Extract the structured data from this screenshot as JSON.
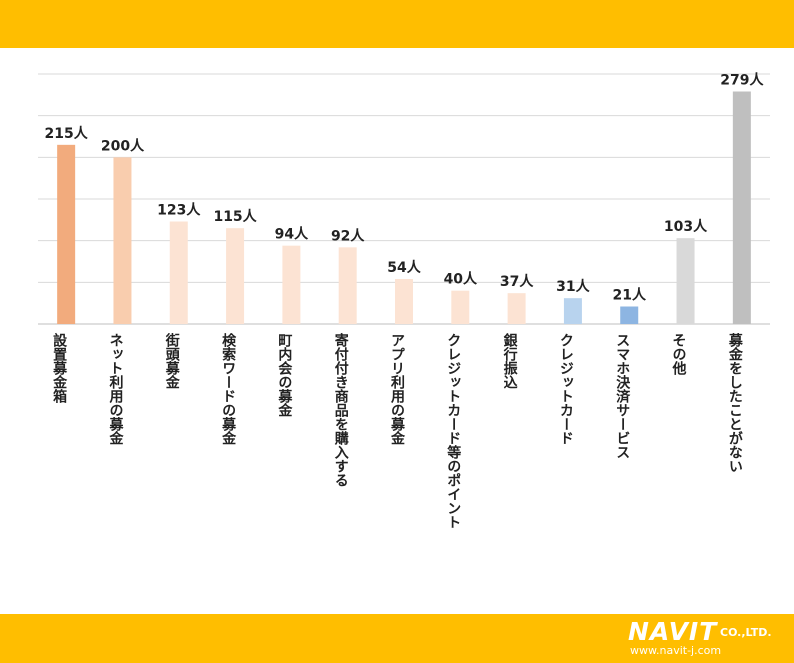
{
  "chart_data": {
    "type": "bar",
    "title": "",
    "xlabel": "",
    "ylabel": "",
    "ylim": [
      0,
      300
    ],
    "grid": true,
    "categories": [
      "設置募金箱",
      "ネット利用の募金",
      "街頭募金",
      "検索ワードの募金",
      "町内会の募金",
      "寄付付き商品を購入する",
      "アプリ利用の募金",
      "クレジットカード等のポイント",
      "銀行振込",
      "クレジットカード",
      "スマホ決済サービス",
      "その他",
      "募金をしたことがない"
    ],
    "values": [
      215,
      200,
      123,
      115,
      94,
      92,
      54,
      40,
      37,
      31,
      21,
      103,
      279
    ],
    "data_labels": [
      "215人",
      "200人",
      "123人",
      "115人",
      "94人",
      "92人",
      "54人",
      "40人",
      "37人",
      "31人",
      "21人",
      "103人",
      "279人"
    ],
    "colors": [
      "#F2AB7D",
      "#F9CDAE",
      "#FCE3D3",
      "#FCE3D3",
      "#FCE3D3",
      "#FCE3D3",
      "#FCE3D3",
      "#FCE3D3",
      "#FCE3D3",
      "#B8D3EE",
      "#8DB5E2",
      "#D9D9D9",
      "#BFBFBF"
    ]
  },
  "footer": {
    "logo_main": "NAVIT",
    "logo_suffix": "CO.,LTD.",
    "url": "www.navit-j.com"
  }
}
